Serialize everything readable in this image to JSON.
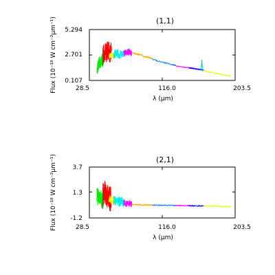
{
  "chart_data": [
    {
      "type": "line",
      "title": "(1,1)",
      "xlabel": "λ (μm)",
      "ylabel": "Flux (10⁻¹⁸ W cm⁻²μm⁻¹)",
      "xlim": [
        28.5,
        203.5
      ],
      "ylim": [
        0.107,
        5.294
      ],
      "xticks": [
        "28.5",
        "116.0",
        "203.5"
      ],
      "yticks": [
        "0.107",
        "2.701",
        "5.294"
      ],
      "grid": false,
      "series": [
        {
          "color": "#00ee00",
          "noise": 0.6,
          "x": [
            37.5,
            39.0,
            40.5,
            42.0,
            43.5,
            45.0
          ],
          "y": [
            1.2,
            1.7,
            2.0,
            1.8,
            2.2,
            2.0
          ]
        },
        {
          "color": "#ff0000",
          "noise": 1.0,
          "x": [
            44.5,
            46.0,
            47.5,
            49.0,
            50.5,
            52.0,
            53.5,
            55.0
          ],
          "y": [
            2.5,
            2.9,
            3.1,
            2.8,
            3.2,
            3.0,
            2.9,
            3.1
          ]
        },
        {
          "color": "#ffff00",
          "noise": 0.3,
          "x": [
            52.0,
            54.0,
            56.0,
            58.0
          ],
          "y": [
            2.55,
            2.6,
            2.7,
            2.65
          ]
        },
        {
          "color": "#00eeee",
          "noise": 0.5,
          "x": [
            57.5,
            60.0,
            62.5,
            65.0,
            67.5,
            70.0
          ],
          "y": [
            2.75,
            2.85,
            2.9,
            2.8,
            2.85,
            2.9
          ]
        },
        {
          "color": "#ff00ff",
          "noise": 0.35,
          "x": [
            69.5,
            72.0,
            74.5,
            77.0,
            79.5
          ],
          "y": [
            2.85,
            2.95,
            3.0,
            2.95,
            2.9
          ]
        },
        {
          "color": "#ffa500",
          "noise": 0.08,
          "x": [
            79.5,
            85.0,
            90.0,
            95.0,
            100.0,
            104.0
          ],
          "y": [
            2.95,
            2.8,
            2.7,
            2.55,
            2.45,
            2.35
          ]
        },
        {
          "color": "#0080ff",
          "noise": 0.06,
          "x": [
            104.0,
            110.0,
            116.0,
            122.0,
            128.0,
            132.0
          ],
          "y": [
            2.3,
            2.1,
            1.95,
            1.85,
            1.72,
            1.65
          ]
        },
        {
          "color": "#ff00ff",
          "noise": 0.05,
          "x": [
            131.0,
            137.0,
            143.0,
            149.0,
            155.0
          ],
          "y": [
            1.62,
            1.52,
            1.45,
            1.38,
            1.32
          ]
        },
        {
          "color": "#0000ff",
          "noise": 0.06,
          "x": [
            148.0,
            153.0,
            158.0,
            162.0,
            166.0
          ],
          "y": [
            1.4,
            1.32,
            1.27,
            1.2,
            1.15
          ]
        },
        {
          "color": "#00cccc",
          "noise": 0.0,
          "x": [
            162.5,
            163.0,
            163.5,
            164.0,
            164.5
          ],
          "y": [
            1.25,
            1.6,
            2.2,
            1.5,
            1.2
          ]
        },
        {
          "color": "#ddff00",
          "noise": 0.05,
          "x": [
            165.0,
            172.0,
            179.0,
            186.0,
            193.0,
            199.0
          ],
          "y": [
            1.12,
            0.95,
            0.85,
            0.72,
            0.62,
            0.55
          ]
        }
      ]
    },
    {
      "type": "line",
      "title": "(2,1)",
      "xlabel": "λ (μm)",
      "ylabel": "Flux (10⁻¹⁸ W cm⁻²μm⁻¹)",
      "xlim": [
        28.5,
        203.5
      ],
      "ylim": [
        -1.2,
        3.7
      ],
      "xticks": [
        "28.5",
        "116.0",
        "203.5"
      ],
      "yticks": [
        "-1.2",
        "1.3",
        "3.7"
      ],
      "grid": false,
      "series": [
        {
          "color": "#00ee00",
          "noise": 0.8,
          "x": [
            37.5,
            39.0,
            40.5,
            42.0,
            43.5,
            45.0
          ],
          "y": [
            1.1,
            0.8,
            0.6,
            0.9,
            0.5,
            0.4
          ]
        },
        {
          "color": "#ff0000",
          "noise": 1.2,
          "x": [
            44.5,
            46.0,
            47.5,
            49.0,
            50.5,
            52.0,
            53.5,
            55.0
          ],
          "y": [
            0.9,
            1.2,
            1.4,
            0.8,
            1.0,
            0.7,
            0.6,
            0.8
          ]
        },
        {
          "color": "#ffff00",
          "noise": 0.4,
          "x": [
            52.0,
            54.0,
            56.0,
            58.0
          ],
          "y": [
            0.7,
            0.6,
            0.5,
            0.55
          ]
        },
        {
          "color": "#00eeee",
          "noise": 0.5,
          "x": [
            57.5,
            60.0,
            62.5,
            65.0,
            67.5,
            70.0
          ],
          "y": [
            0.5,
            0.4,
            0.3,
            0.45,
            0.35,
            0.3
          ]
        },
        {
          "color": "#ff00ff",
          "noise": 0.3,
          "x": [
            69.5,
            72.0,
            74.5,
            77.0,
            79.5
          ],
          "y": [
            0.3,
            0.2,
            0.15,
            0.2,
            0.1
          ]
        },
        {
          "color": "#ffa500",
          "noise": 0.06,
          "x": [
            79.5,
            85.0,
            90.0,
            95.0,
            100.0,
            104.0
          ],
          "y": [
            0.1,
            0.08,
            0.06,
            0.05,
            0.05,
            0.04
          ]
        },
        {
          "color": "#0080ff",
          "noise": 0.05,
          "x": [
            104.0,
            110.0,
            116.0,
            122.0,
            128.0,
            132.0
          ],
          "y": [
            0.04,
            0.03,
            0.02,
            0.02,
            0.01,
            0.01
          ]
        },
        {
          "color": "#ff00ff",
          "noise": 0.05,
          "x": [
            131.0,
            137.0,
            143.0,
            149.0,
            155.0
          ],
          "y": [
            0.0,
            0.0,
            -0.02,
            -0.02,
            -0.03
          ]
        },
        {
          "color": "#0000ff",
          "noise": 0.05,
          "x": [
            148.0,
            153.0,
            158.0,
            162.0,
            166.0
          ],
          "y": [
            -0.02,
            -0.03,
            -0.04,
            -0.04,
            -0.05
          ]
        },
        {
          "color": "#ddff00",
          "noise": 0.06,
          "x": [
            165.0,
            172.0,
            179.0,
            186.0,
            193.0,
            199.0
          ],
          "y": [
            -0.05,
            -0.07,
            -0.08,
            -0.1,
            -0.11,
            -0.12
          ]
        }
      ]
    }
  ]
}
